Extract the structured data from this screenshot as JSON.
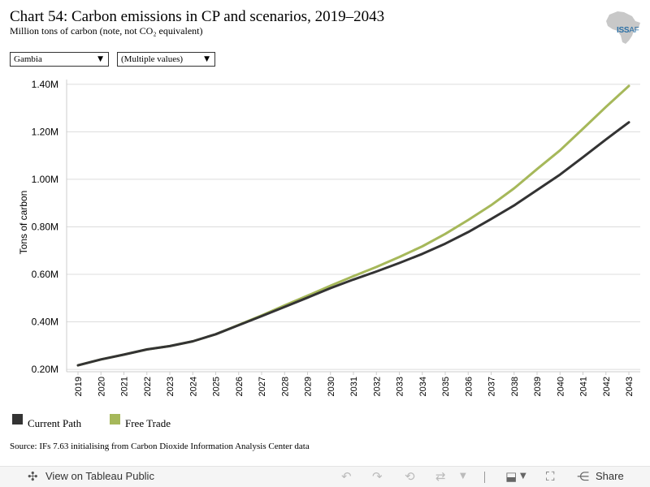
{
  "header": {
    "title": "Chart 54: Carbon emissions in CP and scenarios, 2019–2043",
    "subtitle": "Million tons of carbon (note, not CO₂ equivalent)",
    "logo_text": "ISS",
    "logo_suffix": "AF"
  },
  "filters": {
    "country": "Gambia",
    "scenario": "(Multiple values)"
  },
  "chart_data": {
    "type": "line",
    "xlabel": "",
    "ylabel": "Tons of carbon",
    "x": [
      "2019",
      "2020",
      "2021",
      "2022",
      "2023",
      "2024",
      "2025",
      "2026",
      "2027",
      "2028",
      "2029",
      "2030",
      "2031",
      "2032",
      "2033",
      "2034",
      "2035",
      "2036",
      "2037",
      "2038",
      "2039",
      "2040",
      "2041",
      "2042",
      "2043"
    ],
    "ylim": [
      0.19,
      1.42
    ],
    "yticks": [
      0.2,
      0.4,
      0.6,
      0.8,
      1.0,
      1.2,
      1.4
    ],
    "ytick_labels": [
      "0.20M",
      "0.40M",
      "0.60M",
      "0.80M",
      "1.00M",
      "1.20M",
      "1.40M"
    ],
    "grid": true,
    "legend_position": "bottom-left",
    "series": [
      {
        "name": "Current Path",
        "color": "#333333",
        "values": [
          0.217,
          0.242,
          0.262,
          0.284,
          0.298,
          0.318,
          0.348,
          0.386,
          0.424,
          0.463,
          0.502,
          0.542,
          0.578,
          0.612,
          0.648,
          0.686,
          0.729,
          0.778,
          0.833,
          0.89,
          0.955,
          1.02,
          1.093,
          1.168,
          1.24
        ]
      },
      {
        "name": "Free Trade",
        "color": "#a6b85a",
        "values": [
          0.217,
          0.242,
          0.262,
          0.284,
          0.298,
          0.318,
          0.348,
          0.387,
          0.427,
          0.469,
          0.51,
          0.552,
          0.592,
          0.631,
          0.673,
          0.718,
          0.77,
          0.829,
          0.891,
          0.962,
          1.043,
          1.122,
          1.213,
          1.305,
          1.393
        ]
      }
    ]
  },
  "footer": {
    "source": "Source: IFs 7.63 initialising from Carbon Dioxide Information Analysis Center data"
  },
  "toolbar": {
    "view_label": "View on Tableau Public",
    "share_label": "Share",
    "icons": [
      "tableau-icon",
      "undo-icon",
      "redo-icon",
      "revert-icon",
      "refresh-icon",
      "download-icon",
      "fullscreen-icon",
      "share-icon"
    ]
  }
}
